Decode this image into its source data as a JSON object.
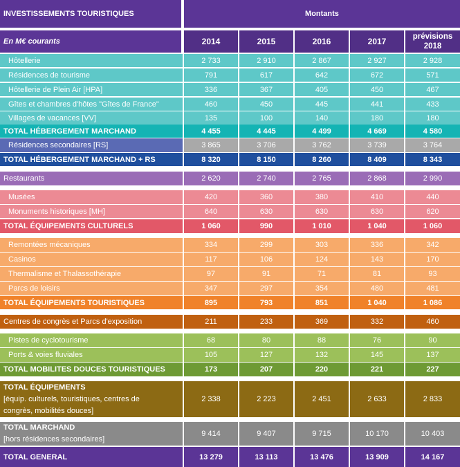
{
  "header": {
    "title": "INVESTISSEMENTS TOURISTIQUES",
    "unit": "En M€ courants",
    "group": "Montants",
    "years": [
      "2014",
      "2015",
      "2016",
      "2017",
      "prévisions 2018"
    ]
  },
  "colors": {
    "header": "#5b3596",
    "header_years": "#512f86",
    "cyan": "#5ec8c8",
    "cyan_total": "#14b4b4",
    "rs_label": "#5a6ab4",
    "rs_values": "#a9a9a9",
    "blue_total": "#1f4f9e",
    "purple": "#9a6cb6",
    "pink": "#ec8a94",
    "pink_total": "#e25868",
    "orange": "#f7aa6a",
    "orange_total": "#f0822a",
    "brown": "#c06010",
    "green": "#9cc05a",
    "green_total": "#6e9a34",
    "olive": "#8c6a14",
    "gray": "#8a8a8a",
    "grand_total": "#5b3596"
  },
  "rows": [
    {
      "label": "Hôtellerie",
      "values": [
        "2 733",
        "2 910",
        "2 867",
        "2 927",
        "2 928"
      ],
      "color": "cyan",
      "indent": true
    },
    {
      "label": "Résidences de tourisme",
      "values": [
        "791",
        "617",
        "642",
        "672",
        "571"
      ],
      "color": "cyan",
      "indent": true
    },
    {
      "label": "Hôtellerie de Plein Air [HPA]",
      "values": [
        "336",
        "367",
        "405",
        "450",
        "467"
      ],
      "color": "cyan",
      "indent": true
    },
    {
      "label": "Gîtes et chambres d'hôtes \"Gîtes de France\"",
      "values": [
        "460",
        "450",
        "445",
        "441",
        "433"
      ],
      "color": "cyan",
      "indent": true
    },
    {
      "label": "Villages de vacances [VV]",
      "values": [
        "135",
        "100",
        "140",
        "180",
        "180"
      ],
      "color": "cyan",
      "indent": true
    },
    {
      "label": "TOTAL HÉBERGEMENT MARCHAND",
      "values": [
        "4 455",
        "4 445",
        "4 499",
        "4 669",
        "4 580"
      ],
      "color": "cyan_total",
      "bold": true
    },
    {
      "label": "Résidences secondaires [RS]",
      "values": [
        "3 865",
        "3 706",
        "3 762",
        "3 739",
        "3 764"
      ],
      "color": "rs_label",
      "value_color": "rs_values",
      "indent": true
    },
    {
      "label": "TOTAL HÉBERGEMENT MARCHAND + RS",
      "values": [
        "8 320",
        "8 150",
        "8 260",
        "8 409",
        "8 343"
      ],
      "color": "blue_total",
      "bold": true
    },
    {
      "label": "Restaurants",
      "values": [
        "2 620",
        "2 740",
        "2 765",
        "2 868",
        "2 990"
      ],
      "color": "purple"
    },
    {
      "label": "Musées",
      "values": [
        "420",
        "360",
        "380",
        "410",
        "440"
      ],
      "color": "pink",
      "indent": true
    },
    {
      "label": "Monuments historiques [MH]",
      "values": [
        "640",
        "630",
        "630",
        "630",
        "620"
      ],
      "color": "pink",
      "indent": true
    },
    {
      "label": "TOTAL ÉQUIPEMENTS CULTURELS",
      "values": [
        "1 060",
        "990",
        "1 010",
        "1 040",
        "1 060"
      ],
      "color": "pink_total",
      "bold": true
    },
    {
      "label": "Remontées mécaniques",
      "values": [
        "334",
        "299",
        "303",
        "336",
        "342"
      ],
      "color": "orange",
      "indent": true
    },
    {
      "label": "Casinos",
      "values": [
        "117",
        "106",
        "124",
        "143",
        "170"
      ],
      "color": "orange",
      "indent": true
    },
    {
      "label": "Thermalisme  et Thalassothérapie",
      "values": [
        "97",
        "91",
        "71",
        "81",
        "93"
      ],
      "color": "orange",
      "indent": true
    },
    {
      "label": "Parcs de loisirs",
      "values": [
        "347",
        "297",
        "354",
        "480",
        "481"
      ],
      "color": "orange",
      "indent": true
    },
    {
      "label": "TOTAL ÉQUIPEMENTS TOURISTIQUES",
      "values": [
        "895",
        "793",
        "851",
        "1 040",
        "1 086"
      ],
      "color": "orange_total",
      "bold": true
    },
    {
      "label": "Centres de congrès et Parcs d'exposition",
      "values": [
        "211",
        "233",
        "369",
        "332",
        "460"
      ],
      "color": "brown"
    },
    {
      "label": "Pistes de cyclotourisme",
      "values": [
        "68",
        "80",
        "88",
        "76",
        "90"
      ],
      "color": "green",
      "indent": true
    },
    {
      "label": "Ports & voies fluviales",
      "values": [
        "105",
        "127",
        "132",
        "145",
        "137"
      ],
      "color": "green",
      "indent": true
    },
    {
      "label": "TOTAL MOBILITES DOUCES TOURISTIQUES",
      "values": [
        "173",
        "207",
        "220",
        "221",
        "227"
      ],
      "color": "green_total",
      "bold": true
    },
    {
      "label": "TOTAL ÉQUIPEMENTS",
      "sublabel_lines": [
        "[équip. culturels, touristiques, centres de",
        "congrès, mobilités douces]"
      ],
      "values": [
        "2 338",
        "2 223",
        "2 451",
        "2 633",
        "2 833"
      ],
      "color": "olive",
      "bold_title": true
    },
    {
      "label": "TOTAL MARCHAND",
      "sublabel_lines": [
        "[hors résidences secondaires]"
      ],
      "values": [
        "9 414",
        "9 407",
        "9 715",
        "10 170",
        "10 403"
      ],
      "color": "gray",
      "bold_title": true
    },
    {
      "label": "TOTAL GENERAL",
      "values": [
        "13 279",
        "13 113",
        "13 476",
        "13 909",
        "14 167"
      ],
      "color": "grand_total",
      "bold": true
    }
  ]
}
